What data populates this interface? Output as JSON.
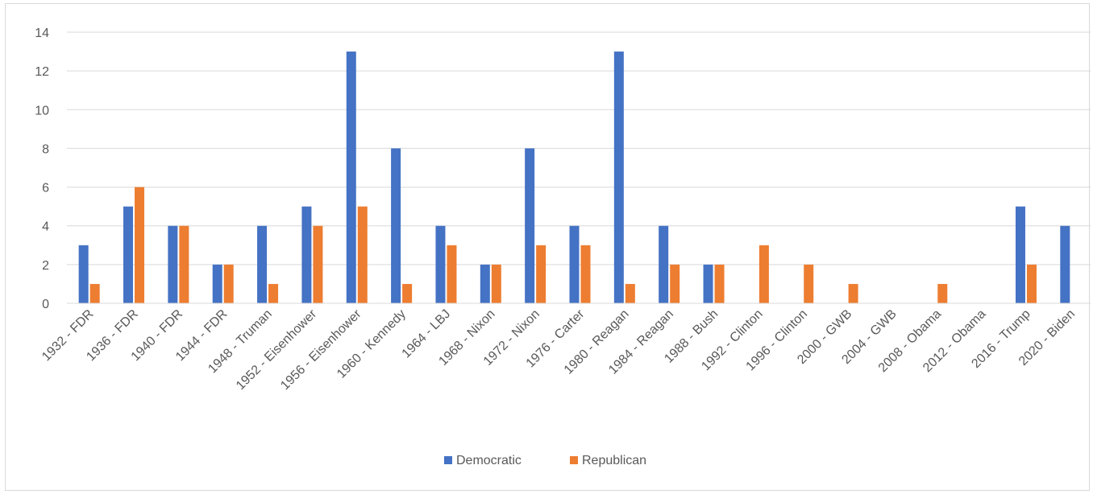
{
  "chart_data": {
    "type": "bar",
    "title": "",
    "xlabel": "",
    "ylabel": "",
    "ylim": [
      0,
      14
    ],
    "yticks": [
      0,
      2,
      4,
      6,
      8,
      10,
      12,
      14
    ],
    "grid": true,
    "legend_position": "bottom",
    "categories": [
      "1932 - FDR",
      "1936 - FDR",
      "1940 - FDR",
      "1944 - FDR",
      "1948 - Truman",
      "1952 - Eisenhower",
      "1956 - Eisenhower",
      "1960 - Kennedy",
      "1964 - LBJ",
      "1968 - Nixon",
      "1972 - Nixon",
      "1976 - Carter",
      "1980 - Reagan",
      "1984 - Reagan",
      "1988 - Bush",
      "1992 - Clinton",
      "1996 - Clinton",
      "2000 - GWB",
      "2004 - GWB",
      "2008 - Obama",
      "2012 - Obama",
      "2016 - Trump",
      "2020 - Biden"
    ],
    "series": [
      {
        "name": "Democratic",
        "color": "#4472c4",
        "values": [
          3,
          5,
          4,
          2,
          4,
          5,
          13,
          8,
          4,
          2,
          8,
          4,
          13,
          4,
          2,
          0,
          0,
          0,
          0,
          0,
          0,
          5,
          4
        ]
      },
      {
        "name": "Republican",
        "color": "#ed7d31",
        "values": [
          1,
          6,
          4,
          2,
          1,
          4,
          5,
          1,
          3,
          2,
          3,
          3,
          1,
          2,
          2,
          3,
          2,
          1,
          0,
          1,
          0,
          2,
          0
        ]
      }
    ]
  }
}
